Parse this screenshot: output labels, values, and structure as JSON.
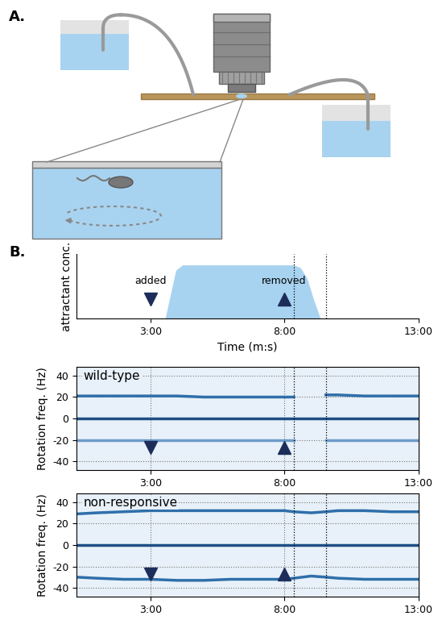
{
  "panel_a": {
    "label": "A."
  },
  "panel_b": {
    "label": "B."
  },
  "chart_data": [
    {
      "type": "area",
      "y_label": "attractant conc.",
      "x_label": "Time (m:s)",
      "x": [
        0.25,
        3.55,
        3.75,
        3.95,
        4.2,
        8.35,
        8.6,
        8.85,
        9.1,
        9.35,
        13
      ],
      "values": [
        0,
        0,
        0.45,
        0.9,
        1.0,
        1.0,
        0.95,
        0.75,
        0.35,
        0,
        0
      ],
      "color": "#a8d3f0",
      "xlim": [
        0.25,
        13
      ],
      "xticks": [
        {
          "value": 3,
          "label": "3:00"
        },
        {
          "value": 8,
          "label": "8:00"
        },
        {
          "value": 13,
          "label": "13:00"
        }
      ],
      "ylim": [
        0,
        1.2
      ],
      "tick_labels": "x",
      "events": [
        {
          "x": 3,
          "label": "added",
          "marker": "triangle_down"
        },
        {
          "x": 8,
          "label": "removed",
          "marker": "triangle_up"
        }
      ],
      "vlines": [
        8.35,
        9.55
      ]
    },
    {
      "type": "line",
      "annotation": "wild-type",
      "y_label": "Rotation freq. (Hz)",
      "x": [
        0.25,
        1,
        2,
        3,
        4,
        5,
        6,
        7,
        8,
        8.35,
        9.0,
        9.55,
        10,
        11,
        12,
        13
      ],
      "series": [
        {
          "color": "#2f6faa",
          "values": [
            21,
            21,
            21,
            21,
            21,
            20,
            20,
            20,
            20,
            20,
            null,
            22,
            22,
            21,
            21,
            21
          ]
        },
        {
          "color": "#1f4e85",
          "values": [
            0,
            0,
            0,
            0,
            0,
            0,
            0,
            0,
            0,
            0,
            0,
            0,
            0,
            0,
            0,
            0
          ]
        },
        {
          "color": "#6d9bcb",
          "values": [
            -20,
            -20,
            -20,
            -20,
            -20,
            -20,
            -20,
            -20,
            -20,
            -20,
            null,
            -20,
            -20,
            -20,
            -20,
            -20
          ]
        }
      ],
      "xlim": [
        0.25,
        13
      ],
      "xticks": [
        {
          "value": 3,
          "label": "3:00"
        },
        {
          "value": 8,
          "label": "8:00"
        },
        {
          "value": 13,
          "label": "13:00"
        }
      ],
      "ylim": [
        -48,
        48
      ],
      "yticks": [
        -40,
        -20,
        0,
        20,
        40
      ],
      "grid": true,
      "events": [
        {
          "x": 3,
          "marker": "triangle_down"
        },
        {
          "x": 8,
          "marker": "triangle_up"
        }
      ],
      "vlines": [
        8.35,
        9.55
      ]
    },
    {
      "type": "line",
      "annotation": "non-responsive",
      "y_label": "Rotation freq. (Hz)",
      "x": [
        0.25,
        1,
        2,
        3,
        4,
        5,
        6,
        7,
        8,
        8.35,
        9.0,
        9.55,
        10,
        11,
        12,
        13
      ],
      "series": [
        {
          "color": "#2f6faa",
          "values": [
            29,
            30,
            31,
            32,
            32,
            32,
            32,
            32,
            32,
            31,
            30,
            31,
            32,
            32,
            31,
            31
          ]
        },
        {
          "color": "#1f4e85",
          "values": [
            0,
            0,
            0,
            0,
            0,
            0,
            0,
            0,
            0,
            0,
            0,
            0,
            0,
            0,
            0,
            0
          ]
        },
        {
          "color": "#2f6faa",
          "values": [
            -30,
            -31,
            -32,
            -32,
            -33,
            -33,
            -32,
            -32,
            -32,
            -31,
            -29,
            -30,
            -31,
            -32,
            -32,
            -32
          ]
        }
      ],
      "xlim": [
        0.25,
        13
      ],
      "xticks": [
        {
          "value": 3,
          "label": "3:00"
        },
        {
          "value": 8,
          "label": "8:00"
        },
        {
          "value": 13,
          "label": "13:00"
        }
      ],
      "ylim": [
        -48,
        48
      ],
      "yticks": [
        -40,
        -20,
        0,
        20,
        40
      ],
      "grid": true,
      "events": [
        {
          "x": 3,
          "marker": "triangle_down"
        },
        {
          "x": 8,
          "marker": "triangle_up"
        }
      ],
      "vlines": [
        8.35,
        9.55
      ]
    }
  ]
}
